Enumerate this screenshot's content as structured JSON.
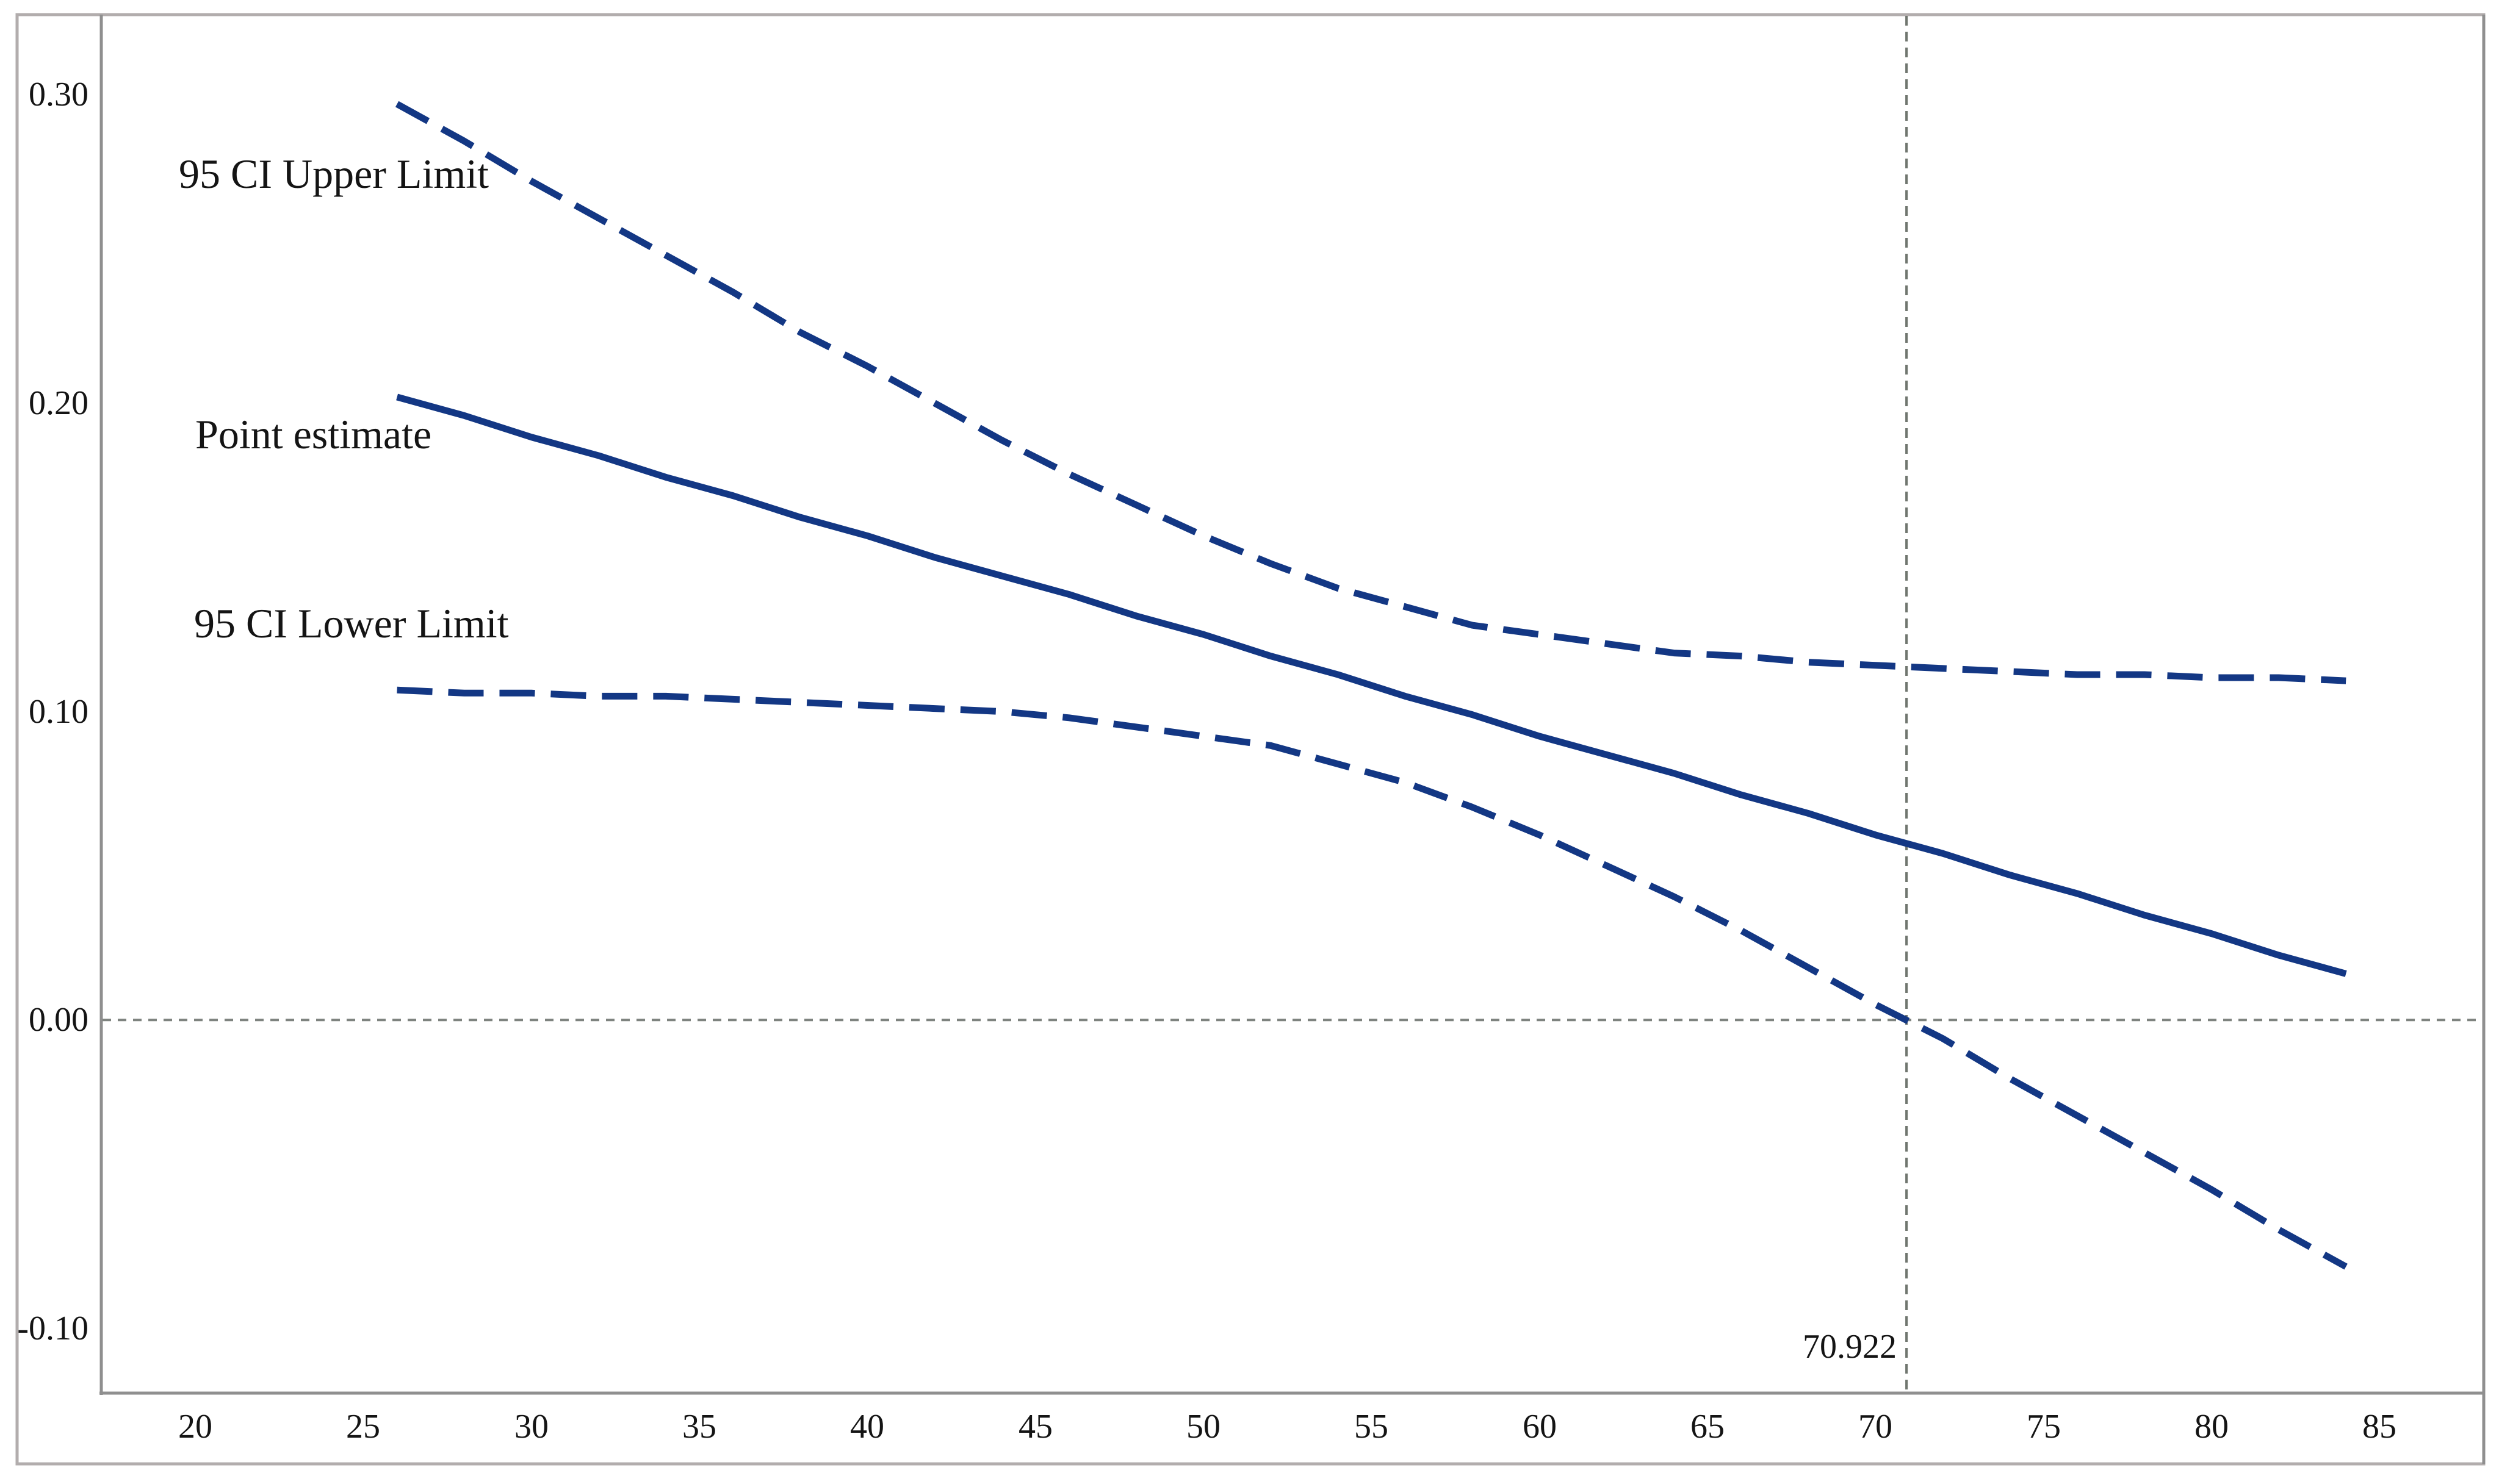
{
  "chart_data": {
    "type": "line",
    "title": "",
    "xlabel": "",
    "ylabel": "",
    "grid": false,
    "legend_position": "inline-labels",
    "x_range": [
      17.2,
      88.1
    ],
    "y_range": [
      -0.121,
      0.326
    ],
    "x_ticks": [
      20,
      25,
      30,
      35,
      40,
      45,
      50,
      55,
      60,
      65,
      70,
      75,
      80,
      85
    ],
    "y_ticks": [
      "0.30",
      "0.20",
      "0.10",
      "0.00",
      "-0.10"
    ],
    "y_tick_values": [
      0.3,
      0.2,
      0.1,
      0.0,
      -0.1
    ],
    "x": [
      26,
      28,
      30,
      32,
      34,
      36,
      38,
      40,
      42,
      44,
      46,
      48,
      50,
      52,
      54,
      56,
      58,
      60,
      62,
      64,
      66,
      68,
      70,
      72,
      74,
      76,
      78,
      80,
      82,
      84
    ],
    "series": [
      {
        "name": "95 CI Upper Limit",
        "style": "dashed",
        "values": [
          0.297,
          0.285,
          0.272,
          0.26,
          0.248,
          0.236,
          0.223,
          0.212,
          0.2,
          0.188,
          0.177,
          0.167,
          0.157,
          0.148,
          0.14,
          0.134,
          0.128,
          0.125,
          0.122,
          0.119,
          0.118,
          0.116,
          0.115,
          0.114,
          0.113,
          0.112,
          0.112,
          0.111,
          0.111,
          0.11
        ]
      },
      {
        "name": "Point estimate",
        "style": "solid",
        "values": [
          0.202,
          0.196,
          0.189,
          0.183,
          0.176,
          0.17,
          0.163,
          0.157,
          0.15,
          0.144,
          0.138,
          0.131,
          0.125,
          0.118,
          0.112,
          0.105,
          0.099,
          0.092,
          0.086,
          0.08,
          0.073,
          0.067,
          0.06,
          0.054,
          0.047,
          0.041,
          0.034,
          0.028,
          0.021,
          0.015
        ]
      },
      {
        "name": "95 CI Lower Limit",
        "style": "dashed",
        "values": [
          0.107,
          0.106,
          0.106,
          0.105,
          0.105,
          0.104,
          0.103,
          0.102,
          0.101,
          0.1,
          0.098,
          0.095,
          0.092,
          0.089,
          0.083,
          0.077,
          0.069,
          0.06,
          0.05,
          0.04,
          0.029,
          0.017,
          0.005,
          -0.006,
          -0.019,
          -0.031,
          -0.043,
          -0.055,
          -0.068,
          -0.08
        ]
      }
    ],
    "reference_lines": {
      "horizontal_y": 0.0,
      "vertical_x": 70.922,
      "vertical_label": "70.922"
    },
    "colors": {
      "series": "#133784",
      "figure_frame": "#b2adad",
      "axis": "#8f8f8f",
      "reference_horizontal": "#7e837f",
      "reference_vertical": "#70766f",
      "text": "#141414"
    }
  }
}
